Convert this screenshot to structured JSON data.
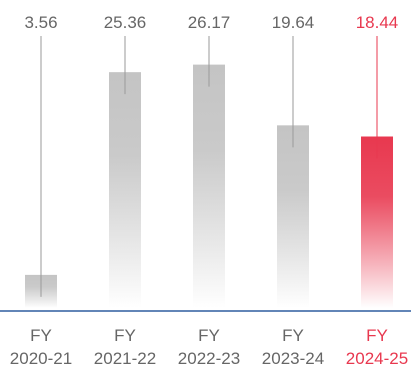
{
  "chart_data": {
    "type": "bar",
    "title": "",
    "xlabel": "",
    "ylabel": "",
    "categories": [
      [
        "FY",
        "2020-21"
      ],
      [
        "FY",
        "2021-22"
      ],
      [
        "FY",
        "2022-23"
      ],
      [
        "FY",
        "2023-24"
      ],
      [
        "FY",
        "2024-25"
      ]
    ],
    "values": [
      3.56,
      25.36,
      26.17,
      19.64,
      18.44
    ],
    "value_labels": [
      "3.56",
      "25.36",
      "26.17",
      "19.64",
      "18.44"
    ],
    "highlight_index": 4,
    "ylim": [
      0,
      28
    ],
    "grid": false,
    "legend": "none",
    "colors": {
      "bar": "#c4c4c4",
      "bar_fade": "#ffffff",
      "text": "#666666",
      "leader_line": "#9a9a9a",
      "highlight": "#e8384f",
      "baseline": "#2e5d9f"
    }
  }
}
